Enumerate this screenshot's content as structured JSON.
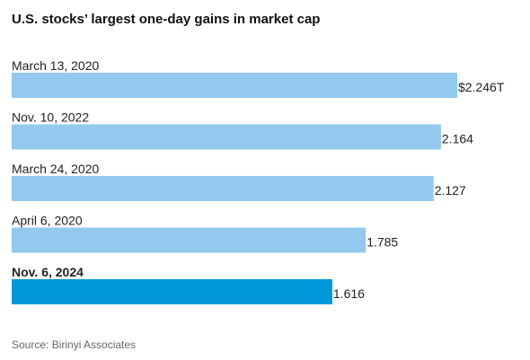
{
  "title": "U.S. stocks’ largest one-day gains in market cap",
  "source": "Source: Birinyi Associates",
  "colors": {
    "bar": "#93c9ef",
    "highlight": "#0098db",
    "label": "#222222"
  },
  "chart_data": {
    "type": "bar",
    "orientation": "horizontal",
    "categories": [
      "March 13, 2020",
      "Nov. 10, 2022",
      "March 24, 2020",
      "April 6, 2020",
      "Nov. 6, 2024"
    ],
    "values": [
      2.246,
      2.164,
      2.127,
      1.785,
      1.616
    ],
    "value_labels": [
      "$2.246T",
      "2.164",
      "2.127",
      "1.785",
      "1.616"
    ],
    "highlight_index": 4,
    "unit": "trillion dollars",
    "xlim": [
      0,
      2.246
    ],
    "grid": false,
    "legend": "none"
  }
}
